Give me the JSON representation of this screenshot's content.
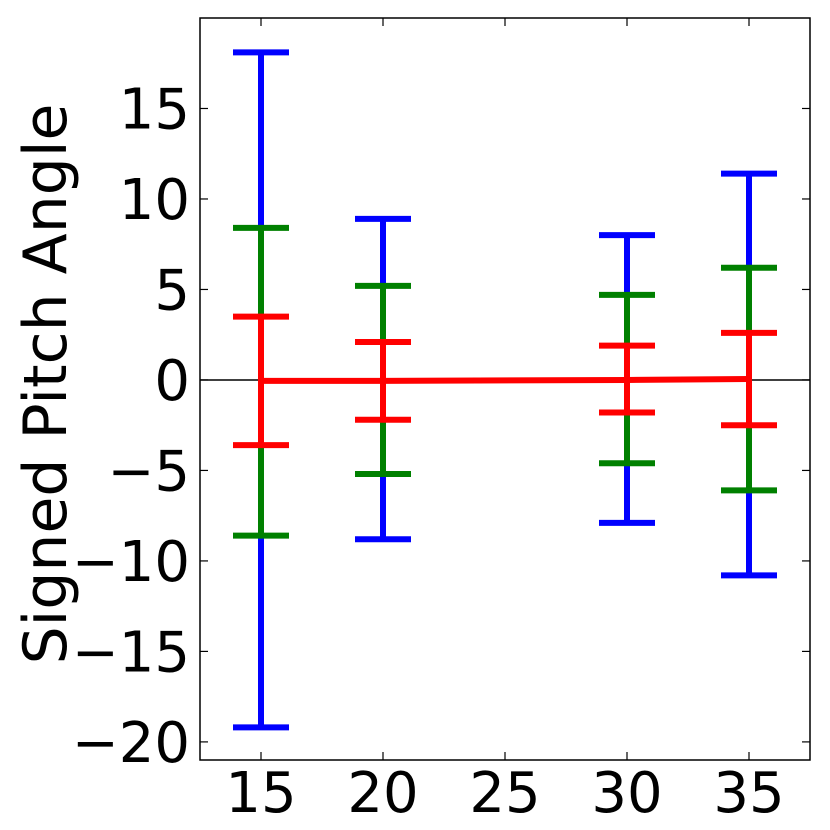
{
  "chart_data": {
    "type": "errorbar",
    "title": "",
    "xlabel": "",
    "ylabel": "Signed Pitch Angle",
    "xlim": [
      12.5,
      37.5
    ],
    "ylim": [
      -21,
      20
    ],
    "x_ticks": [
      15,
      20,
      25,
      30,
      35
    ],
    "x_tick_labels": [
      "15",
      "20",
      "25",
      "30",
      "35"
    ],
    "y_ticks": [
      -20,
      -15,
      -10,
      -5,
      0,
      5,
      10,
      15
    ],
    "y_tick_labels": [
      "−20",
      "−15",
      "−10",
      "−5",
      "0",
      "5",
      "10",
      "15"
    ],
    "zero_line": true,
    "grid": false,
    "series": [
      {
        "color": "#0000ff",
        "x": [
          15,
          20,
          30,
          35
        ],
        "low": [
          -19.2,
          -8.8,
          -7.9,
          -10.8
        ],
        "high": [
          18.1,
          8.9,
          8.0,
          11.4
        ]
      },
      {
        "color": "#008000",
        "x": [
          15,
          20,
          30,
          35
        ],
        "low": [
          -8.6,
          -5.2,
          -4.6,
          -6.1
        ],
        "high": [
          8.4,
          5.2,
          4.7,
          6.2
        ]
      },
      {
        "color": "#ff0000",
        "x": [
          15,
          20,
          30,
          35
        ],
        "low": [
          -3.6,
          -2.2,
          -1.8,
          -2.5
        ],
        "high": [
          3.5,
          2.1,
          1.9,
          2.6
        ]
      }
    ],
    "mean_line": {
      "color": "#ff0000",
      "x": [
        15,
        20,
        30,
        35
      ],
      "y": [
        -0.05,
        -0.05,
        0.0,
        0.05
      ]
    }
  }
}
